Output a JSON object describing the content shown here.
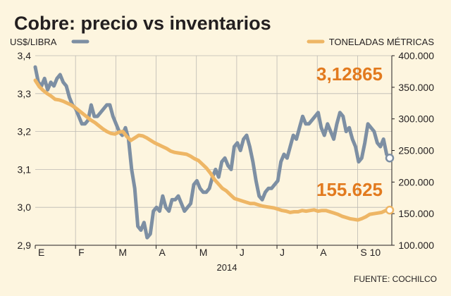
{
  "chart_data": {
    "type": "line",
    "title": "Cobre: precio vs inventarios",
    "source": "FUENTE: COCHILCO",
    "x_ticks": [
      "E",
      "F",
      "M",
      "A",
      "M",
      "J",
      "J",
      "A",
      "S 10"
    ],
    "x_year_label": "2014",
    "grid": true,
    "left_axis": {
      "label": "US$/LIBRA",
      "ticks": [
        "3,4",
        "3,3",
        "3,2",
        "3,1",
        "3,0",
        "2,9"
      ],
      "ylim": [
        2.9,
        3.4
      ]
    },
    "right_axis": {
      "label": "TONELADAS MÉTRICAS",
      "ticks": [
        "400.000",
        "350.000",
        "300.000",
        "250.000",
        "200.000",
        "150.000",
        "100.000"
      ],
      "ylim": [
        100000,
        400000
      ]
    },
    "series": [
      {
        "name": "US$/LIBRA",
        "axis": "left",
        "color": "#7d8fa3",
        "last_value_label": "3,12865",
        "values": [
          3.37,
          3.33,
          3.32,
          3.34,
          3.31,
          3.33,
          3.32,
          3.34,
          3.35,
          3.33,
          3.32,
          3.29,
          3.27,
          3.26,
          3.24,
          3.22,
          3.22,
          3.23,
          3.27,
          3.24,
          3.24,
          3.25,
          3.26,
          3.27,
          3.27,
          3.24,
          3.22,
          3.2,
          3.19,
          3.21,
          3.18,
          3.1,
          3.05,
          2.95,
          2.94,
          2.96,
          2.92,
          2.93,
          2.99,
          3.0,
          2.99,
          3.03,
          3.0,
          2.99,
          3.02,
          3.02,
          3.03,
          3.01,
          2.99,
          3.0,
          3.01,
          3.06,
          3.07,
          3.05,
          3.04,
          3.04,
          3.05,
          3.08,
          3.1,
          3.08,
          3.12,
          3.13,
          3.11,
          3.1,
          3.16,
          3.17,
          3.15,
          3.18,
          3.19,
          3.16,
          3.12,
          3.07,
          3.03,
          3.02,
          3.04,
          3.05,
          3.05,
          3.06,
          3.07,
          3.12,
          3.14,
          3.13,
          3.16,
          3.19,
          3.18,
          3.21,
          3.24,
          3.22,
          3.22,
          3.23,
          3.24,
          3.25,
          3.21,
          3.19,
          3.22,
          3.2,
          3.18,
          3.22,
          3.25,
          3.24,
          3.2,
          3.21,
          3.18,
          3.16,
          3.12,
          3.13,
          3.17,
          3.22,
          3.21,
          3.2,
          3.17,
          3.16,
          3.18,
          3.14,
          3.13
        ]
      },
      {
        "name": "TONELADAS MÉTRICAS",
        "axis": "right",
        "color": "#eeb665",
        "last_value_label": "155.625",
        "values": [
          361000,
          351000,
          345000,
          340000,
          336000,
          331000,
          330000,
          328000,
          325000,
          322000,
          318000,
          313000,
          308000,
          303000,
          298000,
          294000,
          289000,
          284000,
          280000,
          277000,
          276000,
          279000,
          280000,
          272000,
          266000,
          270000,
          274000,
          273000,
          270000,
          266000,
          262000,
          259000,
          256000,
          253000,
          249000,
          247000,
          246000,
          245000,
          244000,
          241000,
          237000,
          234000,
          228000,
          222000,
          214000,
          204000,
          197000,
          190000,
          186000,
          180000,
          174000,
          172000,
          170000,
          168000,
          166000,
          166000,
          164000,
          162000,
          161000,
          160000,
          159000,
          157000,
          155000,
          154000,
          152000,
          153000,
          153000,
          155000,
          154000,
          155000,
          156000,
          154000,
          155000,
          155000,
          153000,
          151000,
          149000,
          146000,
          144000,
          142000,
          141000,
          140000,
          142000,
          145000,
          149000,
          150000,
          151000,
          152000,
          155000,
          155625
        ]
      }
    ]
  }
}
